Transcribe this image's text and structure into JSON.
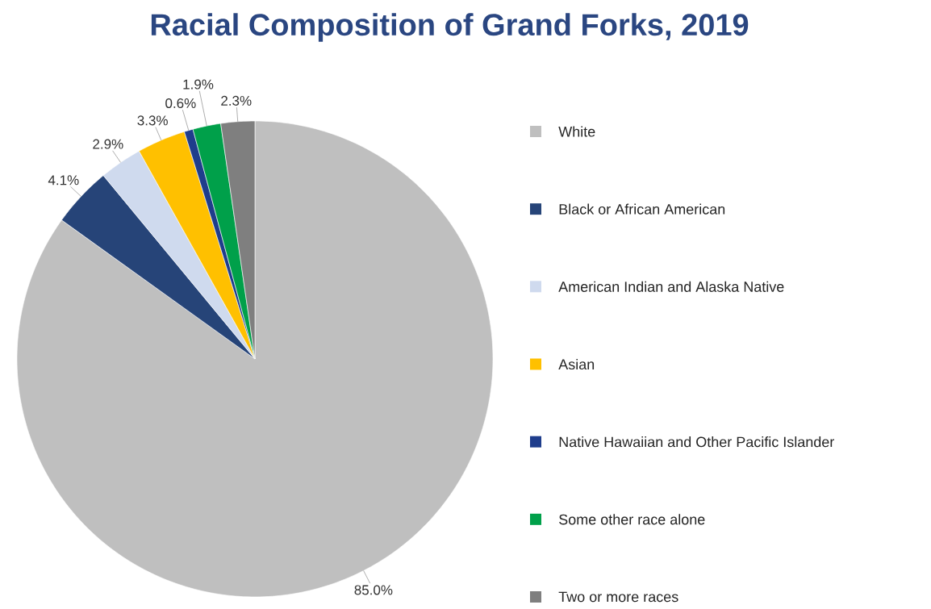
{
  "chart_data": {
    "type": "pie",
    "title": "Racial Composition of Grand Forks, 2019",
    "categories": [
      "White",
      "Black or African American",
      "American Indian and Alaska Native",
      "Asian",
      "Native Hawaiian and Other Pacific Islander",
      "Some other race alone",
      "Two or more races"
    ],
    "values": [
      85.0,
      4.1,
      2.9,
      3.3,
      0.6,
      1.9,
      2.3
    ],
    "value_labels": [
      "85.0%",
      "4.1%",
      "2.9%",
      "3.3%",
      "0.6%",
      "1.9%",
      "2.3%"
    ],
    "colors": [
      "#bfbfbf",
      "#264478",
      "#cfdaee",
      "#ffc000",
      "#1f3d8c",
      "#00a04a",
      "#7f7f7f"
    ],
    "legend": "right"
  }
}
